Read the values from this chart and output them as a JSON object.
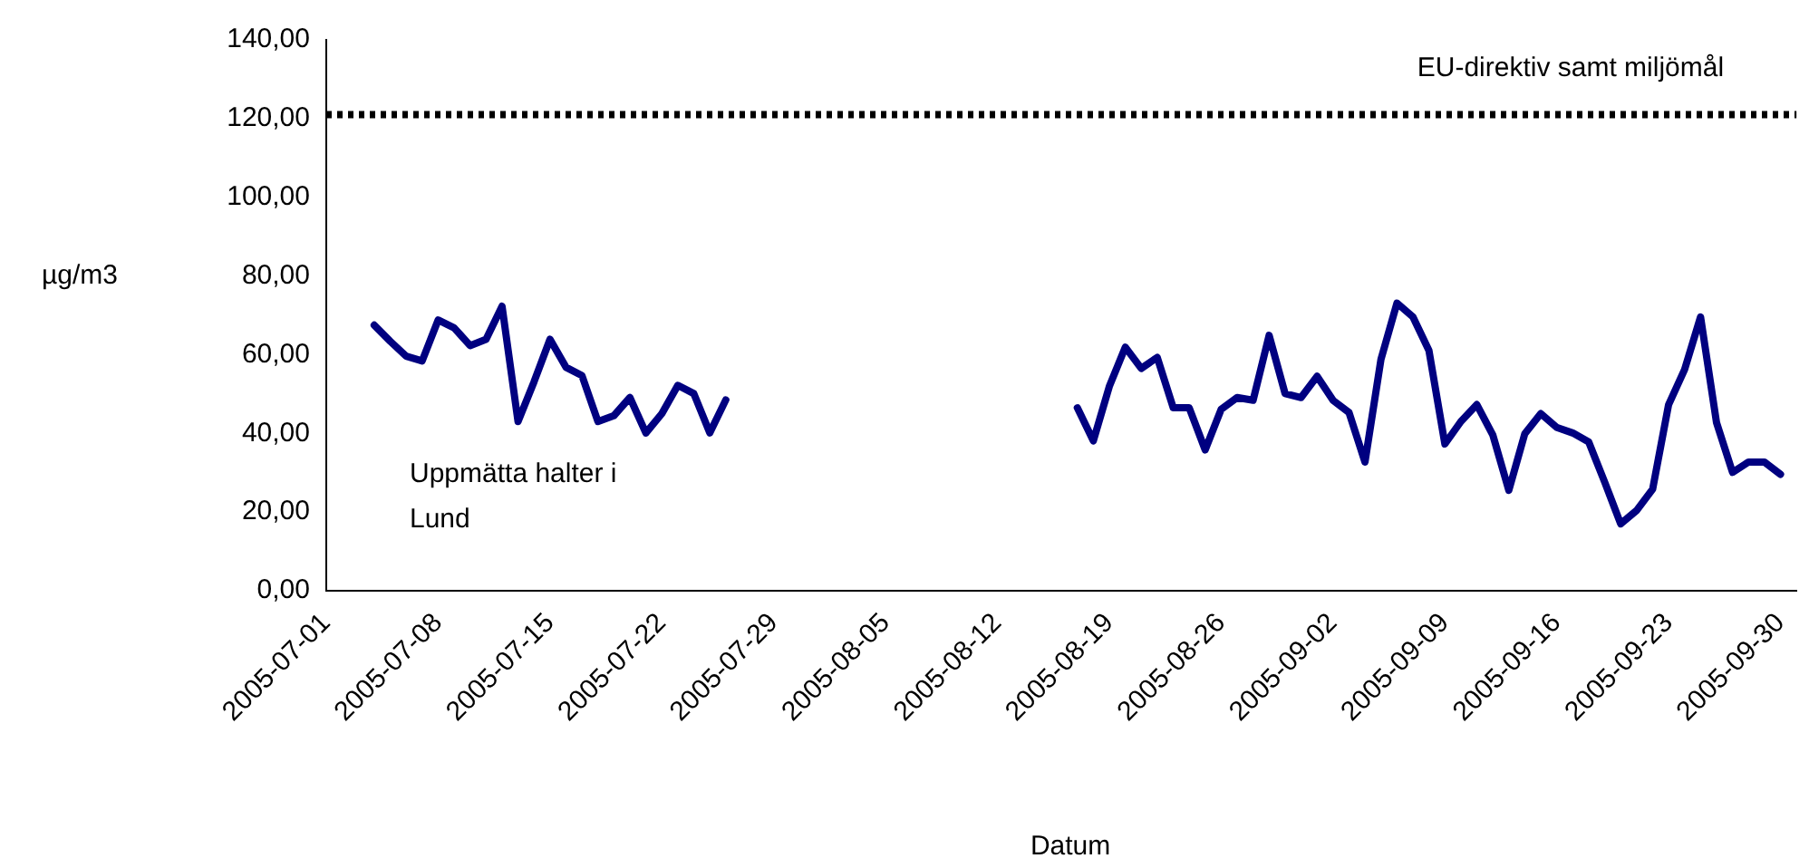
{
  "chart_data": {
    "type": "line",
    "xlabel": "Datum",
    "ylabel": "µg/m3",
    "annotations": [
      "Uppmätta halter i Lund"
    ],
    "x": [
      "2005-07-04",
      "2005-07-05",
      "2005-07-06",
      "2005-07-07",
      "2005-07-08",
      "2005-07-09",
      "2005-07-10",
      "2005-07-11",
      "2005-07-12",
      "2005-07-13",
      "2005-07-14",
      "2005-07-15",
      "2005-07-16",
      "2005-07-17",
      "2005-07-18",
      "2005-07-19",
      "2005-07-20",
      "2005-07-21",
      "2005-07-22",
      "2005-07-23",
      "2005-07-24",
      "2005-07-25",
      "2005-07-26",
      "2005-07-27",
      "2005-08-17",
      "2005-08-18",
      "2005-08-19",
      "2005-08-20",
      "2005-08-21",
      "2005-08-22",
      "2005-08-23",
      "2005-08-24",
      "2005-08-25",
      "2005-08-26",
      "2005-08-27",
      "2005-08-28",
      "2005-08-29",
      "2005-08-30",
      "2005-08-31",
      "2005-09-01",
      "2005-09-02",
      "2005-09-03",
      "2005-09-04",
      "2005-09-05",
      "2005-09-06",
      "2005-09-07",
      "2005-09-08",
      "2005-09-09",
      "2005-09-10",
      "2005-09-11",
      "2005-09-12",
      "2005-09-13",
      "2005-09-14",
      "2005-09-15",
      "2005-09-16",
      "2005-09-17",
      "2005-09-18",
      "2005-09-19",
      "2005-09-20",
      "2005-09-21",
      "2005-09-22",
      "2005-09-23",
      "2005-09-24",
      "2005-09-25",
      "2005-09-26",
      "2005-09-27",
      "2005-09-28",
      "2005-09-29",
      "2005-09-30"
    ],
    "series": [
      {
        "color": "#000080",
        "values": [
          67.5,
          63.4,
          59.6,
          58.4,
          68.8,
          66.8,
          62.3,
          63.9,
          72.3,
          43.0,
          53.1,
          63.9,
          56.8,
          54.7,
          43.0,
          44.5,
          49.1,
          40.1,
          45.0,
          52.2,
          50.1,
          40.1,
          48.5,
          null,
          46.5,
          38.1,
          51.9,
          61.9,
          56.5,
          59.3,
          46.5,
          46.5,
          35.8,
          46.1,
          49.1,
          48.4,
          64.9,
          50.1,
          49.1,
          54.5,
          48.4,
          45.3,
          32.7,
          58.8,
          73.1,
          69.6,
          61.1,
          37.3,
          43.0,
          47.3,
          39.6,
          25.5,
          39.9,
          45.0,
          41.5,
          40.1,
          37.8,
          27.6,
          17.0,
          20.4,
          25.8,
          47.3,
          56.2,
          69.6,
          42.7,
          30.1,
          32.7,
          32.7,
          29.6
        ]
      }
    ],
    "xlim": [
      "2005-07-01",
      "2005-10-01"
    ],
    "xticks": [
      "2005-07-01",
      "2005-07-08",
      "2005-07-15",
      "2005-07-22",
      "2005-07-29",
      "2005-08-05",
      "2005-08-12",
      "2005-08-19",
      "2005-08-26",
      "2005-09-02",
      "2005-09-09",
      "2005-09-16",
      "2005-09-23",
      "2005-09-30"
    ],
    "ylim": [
      0,
      140
    ],
    "yticks": [
      {
        "value": 0,
        "label": "0,00"
      },
      {
        "value": 20,
        "label": "20,00"
      },
      {
        "value": 40,
        "label": "40,00"
      },
      {
        "value": 60,
        "label": "60,00"
      },
      {
        "value": 80,
        "label": "80,00"
      },
      {
        "value": 100,
        "label": "100,00"
      },
      {
        "value": 120,
        "label": "120,00"
      },
      {
        "value": 140,
        "label": "140,00"
      }
    ],
    "ref_lines": [
      {
        "axis": "y",
        "value": 121,
        "label": "EU-direktiv samt miljömål",
        "color": "#000000",
        "line_style": "dotted"
      }
    ],
    "grid": false,
    "legend": false,
    "marker": "none",
    "line_style": "solid"
  }
}
